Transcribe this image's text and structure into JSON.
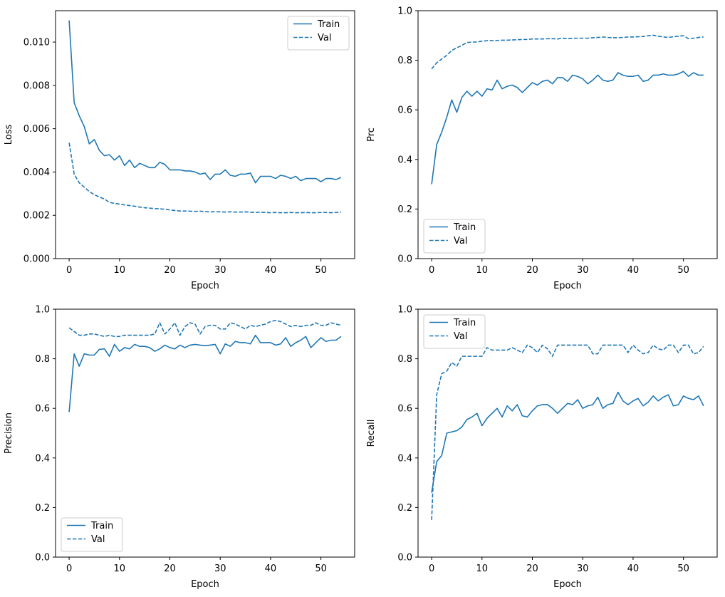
{
  "figure": {
    "background_color": "#ffffff",
    "line_color": "#1f77b4",
    "spine_color": "#000000",
    "legend_border_color": "#cccccc",
    "legend_background_color": "#ffffff"
  },
  "chart_data": [
    {
      "type": "line",
      "title": "",
      "xlabel": "Epoch",
      "ylabel": "Loss",
      "xlim": [
        -2.7,
        56.7
      ],
      "ylim": [
        0,
        0.01145
      ],
      "xticks": [
        0,
        10,
        20,
        30,
        40,
        50
      ],
      "xtick_labels": [
        "0",
        "10",
        "20",
        "30",
        "40",
        "50"
      ],
      "yticks": [
        0.0,
        0.002,
        0.004,
        0.006,
        0.008,
        0.01
      ],
      "ytick_labels": [
        "0.000",
        "0.002",
        "0.004",
        "0.006",
        "0.008",
        "0.010"
      ],
      "grid": false,
      "legend_position": "upper right",
      "x": [
        0,
        1,
        2,
        3,
        4,
        5,
        6,
        7,
        8,
        9,
        10,
        11,
        12,
        13,
        14,
        15,
        16,
        17,
        18,
        19,
        20,
        21,
        22,
        23,
        24,
        25,
        26,
        27,
        28,
        29,
        30,
        31,
        32,
        33,
        34,
        35,
        36,
        37,
        38,
        39,
        40,
        41,
        42,
        43,
        44,
        45,
        46,
        47,
        48,
        49,
        50,
        51,
        52,
        53,
        54
      ],
      "series": [
        {
          "name": "Train",
          "style": "solid",
          "values": [
            0.011,
            0.0072,
            0.0066,
            0.0061,
            0.0053,
            0.0055,
            0.005,
            0.00475,
            0.0048,
            0.00455,
            0.00475,
            0.0043,
            0.00455,
            0.0042,
            0.0044,
            0.0043,
            0.0042,
            0.0042,
            0.00445,
            0.00435,
            0.0041,
            0.0041,
            0.0041,
            0.00405,
            0.00405,
            0.004,
            0.0039,
            0.00395,
            0.00365,
            0.0039,
            0.0039,
            0.0041,
            0.00385,
            0.0038,
            0.0039,
            0.0039,
            0.00395,
            0.0035,
            0.0038,
            0.0038,
            0.0038,
            0.0037,
            0.00385,
            0.0038,
            0.0037,
            0.0038,
            0.0036,
            0.0037,
            0.0037,
            0.0037,
            0.00355,
            0.0037,
            0.0037,
            0.00365,
            0.00375
          ]
        },
        {
          "name": "Val",
          "style": "dashed",
          "values": [
            0.00535,
            0.0039,
            0.0035,
            0.0033,
            0.0031,
            0.00295,
            0.00285,
            0.00275,
            0.0026,
            0.00255,
            0.00252,
            0.00248,
            0.00245,
            0.00242,
            0.00238,
            0.00235,
            0.00233,
            0.00231,
            0.0023,
            0.00228,
            0.00225,
            0.00222,
            0.0022,
            0.0022,
            0.00219,
            0.00218,
            0.00219,
            0.00217,
            0.00216,
            0.00216,
            0.00216,
            0.00215,
            0.00216,
            0.00215,
            0.00215,
            0.00216,
            0.00214,
            0.00213,
            0.00214,
            0.00213,
            0.00212,
            0.00213,
            0.00212,
            0.00212,
            0.00213,
            0.00212,
            0.00212,
            0.00213,
            0.00212,
            0.00212,
            0.00213,
            0.00213,
            0.00212,
            0.00213,
            0.00214
          ]
        }
      ]
    },
    {
      "type": "line",
      "title": "",
      "xlabel": "Epoch",
      "ylabel": "Prc",
      "xlim": [
        -2.7,
        56.7
      ],
      "ylim": [
        0,
        1.0
      ],
      "xticks": [
        0,
        10,
        20,
        30,
        40,
        50
      ],
      "xtick_labels": [
        "0",
        "10",
        "20",
        "30",
        "40",
        "50"
      ],
      "yticks": [
        0.0,
        0.2,
        0.4,
        0.6,
        0.8,
        1.0
      ],
      "ytick_labels": [
        "0.0",
        "0.2",
        "0.4",
        "0.6",
        "0.8",
        "1.0"
      ],
      "grid": false,
      "legend_position": "lower left",
      "x": [
        0,
        1,
        2,
        3,
        4,
        5,
        6,
        7,
        8,
        9,
        10,
        11,
        12,
        13,
        14,
        15,
        16,
        17,
        18,
        19,
        20,
        21,
        22,
        23,
        24,
        25,
        26,
        27,
        28,
        29,
        30,
        31,
        32,
        33,
        34,
        35,
        36,
        37,
        38,
        39,
        40,
        41,
        42,
        43,
        44,
        45,
        46,
        47,
        48,
        49,
        50,
        51,
        52,
        53,
        54
      ],
      "series": [
        {
          "name": "Train",
          "style": "solid",
          "values": [
            0.3,
            0.46,
            0.51,
            0.57,
            0.64,
            0.59,
            0.65,
            0.675,
            0.655,
            0.675,
            0.655,
            0.685,
            0.68,
            0.72,
            0.685,
            0.695,
            0.7,
            0.69,
            0.67,
            0.69,
            0.71,
            0.7,
            0.715,
            0.72,
            0.705,
            0.73,
            0.73,
            0.715,
            0.74,
            0.735,
            0.725,
            0.705,
            0.72,
            0.74,
            0.72,
            0.715,
            0.72,
            0.75,
            0.74,
            0.735,
            0.735,
            0.74,
            0.715,
            0.72,
            0.74,
            0.74,
            0.745,
            0.74,
            0.74,
            0.745,
            0.755,
            0.735,
            0.75,
            0.74,
            0.74
          ]
        },
        {
          "name": "Val",
          "style": "dashed",
          "values": [
            0.765,
            0.79,
            0.805,
            0.82,
            0.84,
            0.85,
            0.86,
            0.872,
            0.873,
            0.874,
            0.877,
            0.879,
            0.879,
            0.88,
            0.881,
            0.881,
            0.882,
            0.883,
            0.884,
            0.884,
            0.886,
            0.886,
            0.886,
            0.887,
            0.887,
            0.886,
            0.889,
            0.887,
            0.889,
            0.889,
            0.889,
            0.889,
            0.891,
            0.892,
            0.894,
            0.892,
            0.891,
            0.891,
            0.892,
            0.894,
            0.894,
            0.895,
            0.896,
            0.899,
            0.901,
            0.897,
            0.894,
            0.892,
            0.895,
            0.897,
            0.899,
            0.887,
            0.889,
            0.892,
            0.894
          ]
        }
      ]
    },
    {
      "type": "line",
      "title": "",
      "xlabel": "Epoch",
      "ylabel": "Precision",
      "xlim": [
        -2.7,
        56.7
      ],
      "ylim": [
        0,
        1.0
      ],
      "xticks": [
        0,
        10,
        20,
        30,
        40,
        50
      ],
      "xtick_labels": [
        "0",
        "10",
        "20",
        "30",
        "40",
        "50"
      ],
      "yticks": [
        0.0,
        0.2,
        0.4,
        0.6,
        0.8,
        1.0
      ],
      "ytick_labels": [
        "0.0",
        "0.2",
        "0.4",
        "0.6",
        "0.8",
        "1.0"
      ],
      "grid": false,
      "legend_position": "lower left",
      "x": [
        0,
        1,
        2,
        3,
        4,
        5,
        6,
        7,
        8,
        9,
        10,
        11,
        12,
        13,
        14,
        15,
        16,
        17,
        18,
        19,
        20,
        21,
        22,
        23,
        24,
        25,
        26,
        27,
        28,
        29,
        30,
        31,
        32,
        33,
        34,
        35,
        36,
        37,
        38,
        39,
        40,
        41,
        42,
        43,
        44,
        45,
        46,
        47,
        48,
        49,
        50,
        51,
        52,
        53,
        54
      ],
      "series": [
        {
          "name": "Train",
          "style": "solid",
          "values": [
            0.585,
            0.82,
            0.77,
            0.82,
            0.815,
            0.815,
            0.838,
            0.84,
            0.81,
            0.858,
            0.83,
            0.845,
            0.84,
            0.858,
            0.85,
            0.85,
            0.845,
            0.83,
            0.84,
            0.855,
            0.845,
            0.84,
            0.855,
            0.845,
            0.855,
            0.858,
            0.855,
            0.853,
            0.855,
            0.858,
            0.82,
            0.86,
            0.85,
            0.87,
            0.865,
            0.865,
            0.86,
            0.895,
            0.865,
            0.865,
            0.865,
            0.855,
            0.86,
            0.885,
            0.85,
            0.865,
            0.875,
            0.89,
            0.845,
            0.865,
            0.885,
            0.87,
            0.875,
            0.875,
            0.89
          ]
        },
        {
          "name": "Val",
          "style": "dashed",
          "values": [
            0.925,
            0.91,
            0.895,
            0.895,
            0.9,
            0.9,
            0.895,
            0.89,
            0.895,
            0.89,
            0.89,
            0.895,
            0.895,
            0.895,
            0.895,
            0.895,
            0.895,
            0.9,
            0.945,
            0.9,
            0.92,
            0.945,
            0.895,
            0.93,
            0.945,
            0.94,
            0.9,
            0.93,
            0.935,
            0.935,
            0.92,
            0.92,
            0.945,
            0.94,
            0.93,
            0.92,
            0.935,
            0.93,
            0.935,
            0.94,
            0.95,
            0.955,
            0.95,
            0.94,
            0.93,
            0.935,
            0.93,
            0.935,
            0.935,
            0.945,
            0.935,
            0.935,
            0.945,
            0.94,
            0.935
          ]
        }
      ]
    },
    {
      "type": "line",
      "title": "",
      "xlabel": "Epoch",
      "ylabel": "Recall",
      "xlim": [
        -2.7,
        56.7
      ],
      "ylim": [
        0,
        1.0
      ],
      "xticks": [
        0,
        10,
        20,
        30,
        40,
        50
      ],
      "xtick_labels": [
        "0",
        "10",
        "20",
        "30",
        "40",
        "50"
      ],
      "yticks": [
        0.0,
        0.2,
        0.4,
        0.6,
        0.8,
        1.0
      ],
      "ytick_labels": [
        "0.0",
        "0.2",
        "0.4",
        "0.6",
        "0.8",
        "1.0"
      ],
      "grid": false,
      "legend_position": "upper left",
      "x": [
        0,
        1,
        2,
        3,
        4,
        5,
        6,
        7,
        8,
        9,
        10,
        11,
        12,
        13,
        14,
        15,
        16,
        17,
        18,
        19,
        20,
        21,
        22,
        23,
        24,
        25,
        26,
        27,
        28,
        29,
        30,
        31,
        32,
        33,
        34,
        35,
        36,
        37,
        38,
        39,
        40,
        41,
        42,
        43,
        44,
        45,
        46,
        47,
        48,
        49,
        50,
        51,
        52,
        53,
        54
      ],
      "series": [
        {
          "name": "Train",
          "style": "solid",
          "values": [
            0.26,
            0.385,
            0.41,
            0.5,
            0.505,
            0.51,
            0.525,
            0.555,
            0.565,
            0.58,
            0.53,
            0.56,
            0.58,
            0.6,
            0.565,
            0.61,
            0.59,
            0.615,
            0.57,
            0.565,
            0.59,
            0.61,
            0.615,
            0.615,
            0.6,
            0.58,
            0.6,
            0.62,
            0.615,
            0.635,
            0.6,
            0.61,
            0.615,
            0.645,
            0.6,
            0.615,
            0.62,
            0.665,
            0.63,
            0.615,
            0.63,
            0.64,
            0.61,
            0.625,
            0.65,
            0.63,
            0.645,
            0.655,
            0.61,
            0.615,
            0.65,
            0.64,
            0.635,
            0.65,
            0.61
          ]
        },
        {
          "name": "Val",
          "style": "dashed",
          "values": [
            0.15,
            0.655,
            0.74,
            0.75,
            0.785,
            0.77,
            0.81,
            0.81,
            0.81,
            0.81,
            0.81,
            0.845,
            0.835,
            0.835,
            0.835,
            0.835,
            0.845,
            0.835,
            0.825,
            0.855,
            0.845,
            0.825,
            0.855,
            0.84,
            0.81,
            0.855,
            0.855,
            0.855,
            0.855,
            0.855,
            0.855,
            0.855,
            0.82,
            0.82,
            0.855,
            0.855,
            0.855,
            0.855,
            0.855,
            0.825,
            0.855,
            0.835,
            0.82,
            0.825,
            0.855,
            0.84,
            0.835,
            0.855,
            0.855,
            0.825,
            0.855,
            0.855,
            0.82,
            0.825,
            0.85
          ]
        }
      ]
    }
  ],
  "legend": {
    "train_label": "Train",
    "val_label": "Val"
  }
}
